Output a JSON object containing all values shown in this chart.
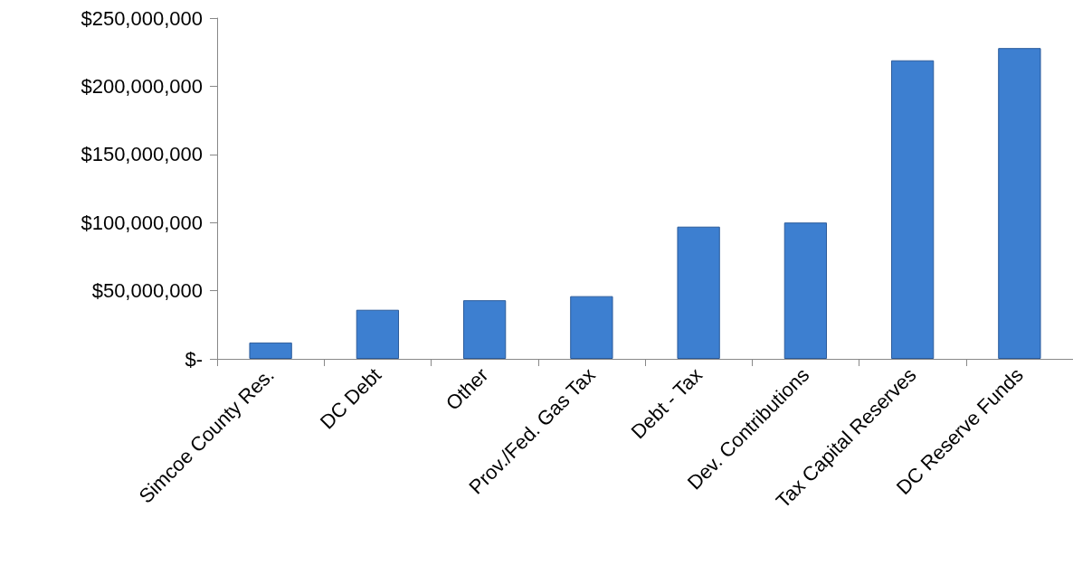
{
  "chart_data": {
    "type": "bar",
    "categories": [
      "Simcoe County Res.",
      "DC Debt",
      "Other",
      "Prov./Fed. Gas Tax",
      "Debt - Tax",
      "Dev. Contributions",
      "Tax Capital Reserves",
      "DC Reserve Funds"
    ],
    "values": [
      12000000,
      36000000,
      43000000,
      46000000,
      97000000,
      100000000,
      219000000,
      228000000
    ],
    "color": "#3d7fd0",
    "ylim": [
      0,
      250000000
    ],
    "yticks": [
      {
        "value": 0,
        "label": "$-"
      },
      {
        "value": 50000000,
        "label": "$50,000,000"
      },
      {
        "value": 100000000,
        "label": "$100,000,000"
      },
      {
        "value": 150000000,
        "label": "$150,000,000"
      },
      {
        "value": 200000000,
        "label": "$200,000,000"
      },
      {
        "value": 250000000,
        "label": "$250,000,000"
      }
    ],
    "grid": false
  }
}
